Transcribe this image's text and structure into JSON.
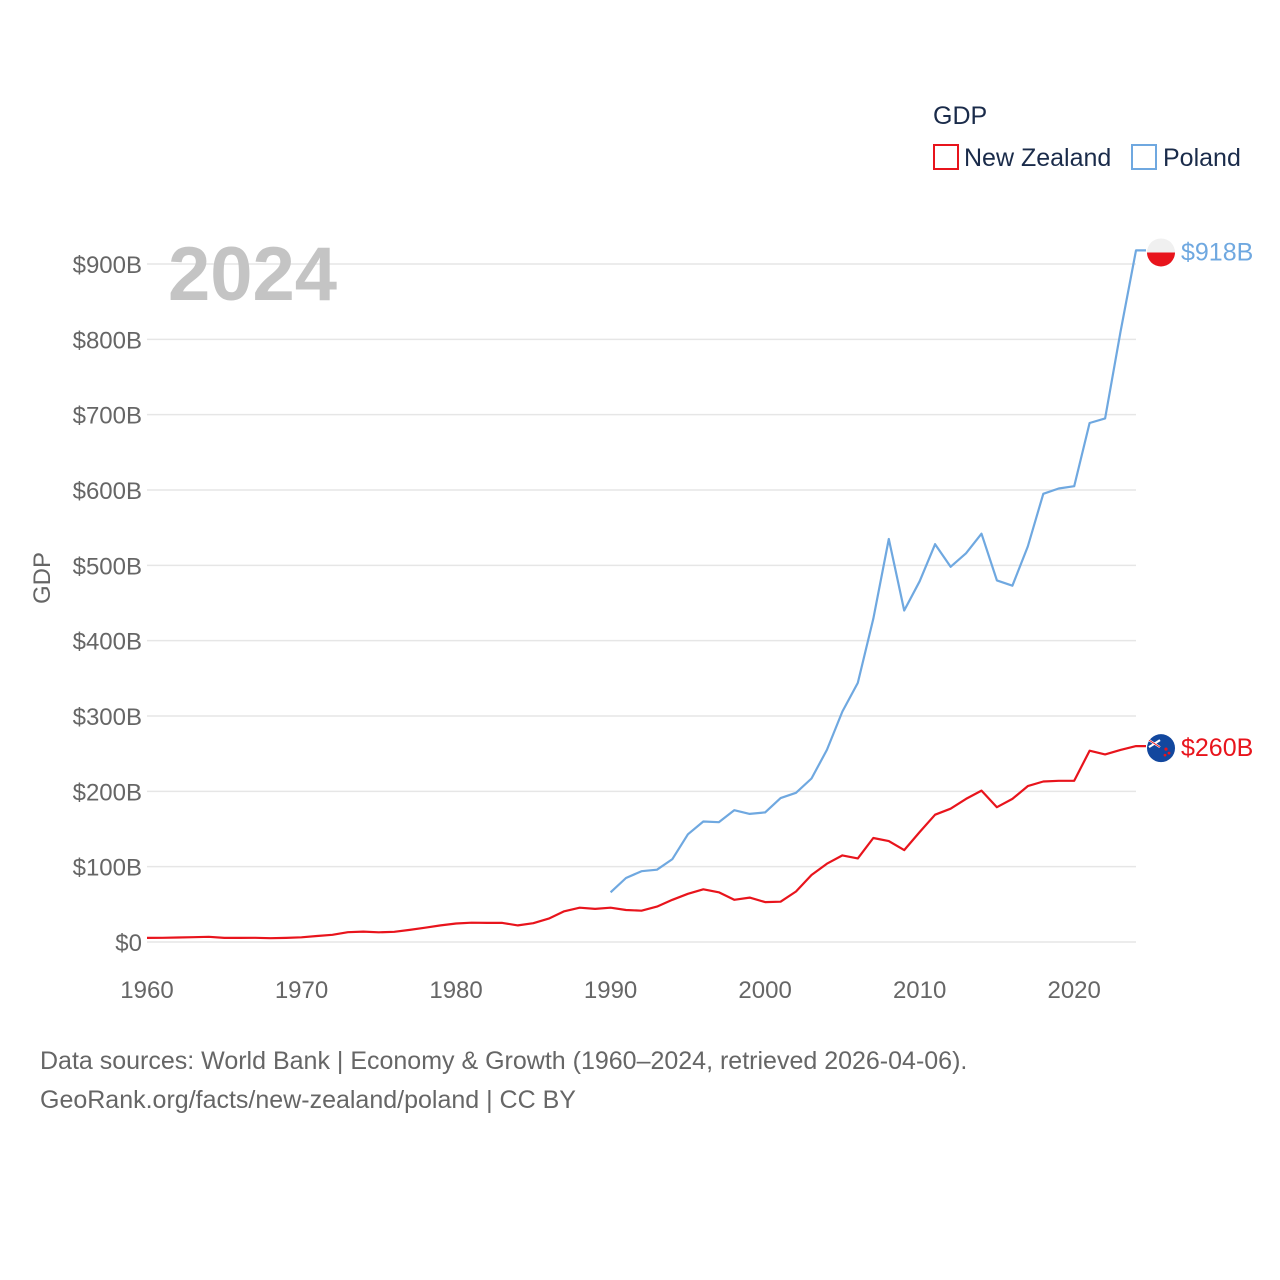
{
  "chart_data": {
    "type": "line",
    "year_label": "2024",
    "ylabel": "GDP",
    "legend_title": "GDP",
    "ylim": [
      0,
      950000000000
    ],
    "xlim": [
      1960,
      2024
    ],
    "y_ticks": [
      {
        "value": 0,
        "label": "$0"
      },
      {
        "value": 100000000000,
        "label": "$100B"
      },
      {
        "value": 200000000000,
        "label": "$200B"
      },
      {
        "value": 300000000000,
        "label": "$300B"
      },
      {
        "value": 400000000000,
        "label": "$400B"
      },
      {
        "value": 500000000000,
        "label": "$500B"
      },
      {
        "value": 600000000000,
        "label": "$600B"
      },
      {
        "value": 700000000000,
        "label": "$700B"
      },
      {
        "value": 800000000000,
        "label": "$800B"
      },
      {
        "value": 900000000000,
        "label": "$900B"
      }
    ],
    "x_ticks": [
      {
        "value": 1960,
        "label": "1960"
      },
      {
        "value": 1970,
        "label": "1970"
      },
      {
        "value": 1980,
        "label": "1980"
      },
      {
        "value": 1990,
        "label": "1990"
      },
      {
        "value": 2000,
        "label": "2000"
      },
      {
        "value": 2010,
        "label": "2010"
      },
      {
        "value": 2020,
        "label": "2020"
      }
    ],
    "series": [
      {
        "name": "New Zealand",
        "color": "#e8141c",
        "end_label": "$260B",
        "flag": "new-zealand-flag-icon",
        "x": [
          1960,
          1961,
          1962,
          1963,
          1964,
          1965,
          1966,
          1967,
          1968,
          1969,
          1970,
          1971,
          1972,
          1973,
          1974,
          1975,
          1976,
          1977,
          1978,
          1979,
          1980,
          1981,
          1982,
          1983,
          1984,
          1985,
          1986,
          1987,
          1988,
          1989,
          1990,
          1991,
          1992,
          1993,
          1994,
          1995,
          1996,
          1997,
          1998,
          1999,
          2000,
          2001,
          2002,
          2003,
          2004,
          2005,
          2006,
          2007,
          2008,
          2009,
          2010,
          2011,
          2012,
          2013,
          2014,
          2015,
          2016,
          2017,
          2018,
          2019,
          2020,
          2021,
          2022,
          2023,
          2024
        ],
        "values": [
          5.5,
          5.6,
          6.0,
          6.4,
          6.9,
          5.5,
          5.5,
          5.6,
          5.0,
          5.5,
          6.2,
          7.9,
          9.5,
          13.0,
          13.8,
          12.9,
          13.6,
          16.0,
          19.0,
          22.0,
          24.5,
          25.6,
          25.3,
          25.3,
          22.0,
          25.0,
          31.0,
          40.7,
          45.5,
          44.0,
          45.5,
          42.5,
          41.5,
          47.0,
          56.0,
          64.0,
          70.0,
          66.0,
          56.0,
          59.0,
          53.0,
          53.5,
          67.0,
          89.0,
          104.0,
          115.0,
          111.0,
          138.0,
          134.0,
          122.0,
          146.0,
          169.0,
          177.0,
          190.0,
          201.0,
          179.0,
          190.0,
          207.0,
          213.0,
          214.0,
          214.0,
          254.0,
          249.0,
          255.0,
          260.0
        ]
      },
      {
        "name": "Poland",
        "color": "#6fa8e0",
        "end_label": "$918B",
        "flag": "poland-flag-icon",
        "x": [
          1990,
          1991,
          1992,
          1993,
          1994,
          1995,
          1996,
          1997,
          1998,
          1999,
          2000,
          2001,
          2002,
          2003,
          2004,
          2005,
          2006,
          2007,
          2008,
          2009,
          2010,
          2011,
          2012,
          2013,
          2014,
          2015,
          2016,
          2017,
          2018,
          2019,
          2020,
          2021,
          2022,
          2023,
          2024
        ],
        "values": [
          66.0,
          85.0,
          94.0,
          96.0,
          110.0,
          143.0,
          160.0,
          159.0,
          175.0,
          170.0,
          172.0,
          191.0,
          198.0,
          217.0,
          255.0,
          306.0,
          344.0,
          429.0,
          535.0,
          440.0,
          479.0,
          528.0,
          498.0,
          516.0,
          542.0,
          480.0,
          473.0,
          525.0,
          595.0,
          602.0,
          605.0,
          689.0,
          695.0,
          810.0,
          918.0
        ]
      }
    ]
  },
  "footer": {
    "line1": "Data sources: World Bank | Economy & Growth (1960–2024, retrieved 2026-04-06).",
    "line2": "GeoRank.org/facts/new-zealand/poland | CC BY"
  }
}
